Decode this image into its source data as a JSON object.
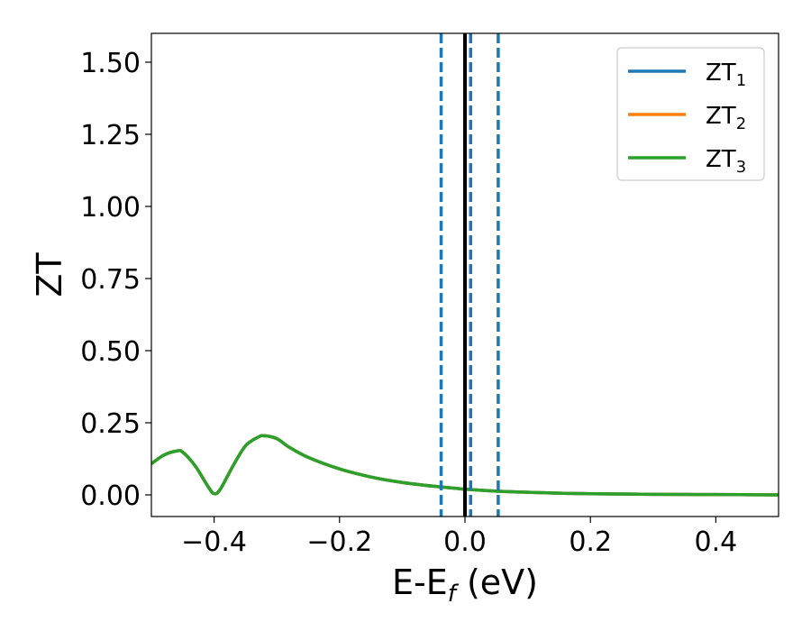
{
  "chart_data": {
    "type": "line",
    "xlabel": {
      "main": "E-E",
      "sub": "f",
      "suffix": " (eV)"
    },
    "ylabel": "ZT",
    "xlim": [
      -0.5,
      0.5
    ],
    "ylim": [
      -0.075,
      1.6
    ],
    "grid": false,
    "legend_position": "top-right",
    "x_ticks": [
      -0.4,
      -0.2,
      0.0,
      0.2,
      0.4
    ],
    "x_tick_labels": [
      "−0.4",
      "−0.2",
      "0.0",
      "0.2",
      "0.4"
    ],
    "y_ticks": [
      0.0,
      0.25,
      0.5,
      0.75,
      1.0,
      1.25,
      1.5
    ],
    "y_tick_labels": [
      "0.00",
      "0.25",
      "0.50",
      "0.75",
      "1.00",
      "1.25",
      "1.50"
    ],
    "x": [
      -0.5,
      -0.48,
      -0.46,
      -0.45,
      -0.43,
      -0.41,
      -0.4,
      -0.39,
      -0.37,
      -0.35,
      -0.33,
      -0.32,
      -0.3,
      -0.28,
      -0.25,
      -0.2,
      -0.15,
      -0.1,
      -0.05,
      0.0,
      0.05,
      0.1,
      0.15,
      0.2,
      0.3,
      0.4,
      0.5
    ],
    "series": [
      {
        "name": "ZT",
        "sub": "1",
        "color": "#1f77b4",
        "values": [
          0.108,
          0.138,
          0.152,
          0.148,
          0.1,
          0.03,
          0.004,
          0.02,
          0.1,
          0.17,
          0.2,
          0.205,
          0.195,
          0.165,
          0.13,
          0.09,
          0.062,
          0.043,
          0.03,
          0.02,
          0.013,
          0.009,
          0.006,
          0.004,
          0.002,
          0.001,
          0.0
        ]
      },
      {
        "name": "ZT",
        "sub": "2",
        "color": "#ff7f0e",
        "values": [
          0.108,
          0.138,
          0.152,
          0.148,
          0.1,
          0.03,
          0.004,
          0.02,
          0.1,
          0.17,
          0.2,
          0.205,
          0.195,
          0.165,
          0.13,
          0.09,
          0.062,
          0.043,
          0.03,
          0.02,
          0.013,
          0.009,
          0.006,
          0.004,
          0.002,
          0.001,
          0.0
        ]
      },
      {
        "name": "ZT",
        "sub": "3",
        "color": "#2ca02c",
        "values": [
          0.108,
          0.138,
          0.152,
          0.148,
          0.1,
          0.03,
          0.004,
          0.02,
          0.1,
          0.17,
          0.2,
          0.205,
          0.195,
          0.165,
          0.13,
          0.09,
          0.062,
          0.043,
          0.03,
          0.02,
          0.013,
          0.009,
          0.006,
          0.004,
          0.002,
          0.001,
          0.0
        ]
      }
    ],
    "vertical_lines": [
      {
        "x": 0.0,
        "style": "solid",
        "color": "#000000"
      },
      {
        "x": -0.038,
        "style": "dashed",
        "color": "#1f77b4"
      },
      {
        "x": 0.009,
        "style": "dashed",
        "color": "#1f77b4"
      },
      {
        "x": 0.053,
        "style": "dashed",
        "color": "#1f77b4"
      }
    ]
  }
}
